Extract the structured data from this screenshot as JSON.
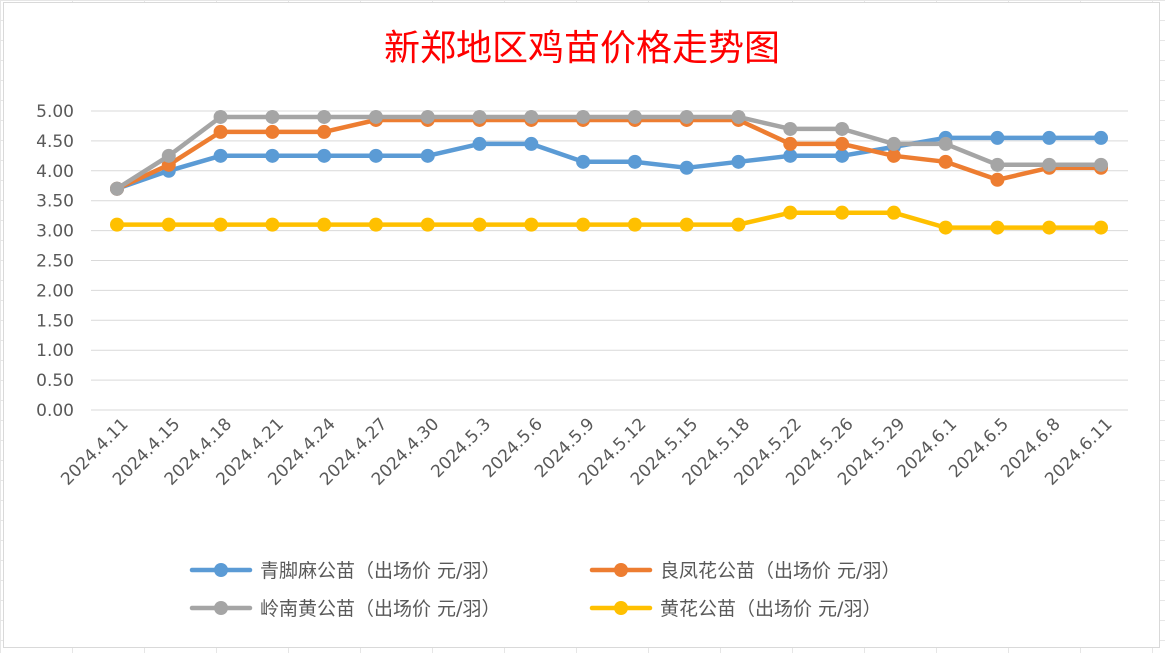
{
  "chart_data": {
    "type": "line",
    "title": "新郑地区鸡苗价格走势图",
    "xlabel": "",
    "ylabel": "",
    "ylim": [
      0,
      5
    ],
    "yticks": [
      "0.00",
      "0.50",
      "1.00",
      "1.50",
      "2.00",
      "2.50",
      "3.00",
      "3.50",
      "4.00",
      "4.50",
      "5.00"
    ],
    "grid": true,
    "legend_position": "bottom",
    "categories": [
      "2024.4.11",
      "2024.4.15",
      "2024.4.18",
      "2024.4.21",
      "2024.4.24",
      "2024.4.27",
      "2024.4.30",
      "2024.5.3",
      "2024.5.6",
      "2024.5.9",
      "2024.5.12",
      "2024.5.15",
      "2024.5.18",
      "2024.5.22",
      "2024.5.26",
      "2024.5.29",
      "2024.6.1",
      "2024.6.5",
      "2024.6.8",
      "2024.6.11"
    ],
    "series": [
      {
        "name": "青脚麻公苗（出场价 元/羽）",
        "color": "#5b9bd5",
        "values": [
          3.7,
          4.0,
          4.25,
          4.25,
          4.25,
          4.25,
          4.25,
          4.45,
          4.45,
          4.15,
          4.15,
          4.05,
          4.15,
          4.25,
          4.25,
          4.4,
          4.55,
          4.55,
          4.55,
          4.55
        ]
      },
      {
        "name": "良凤花公苗（出场价 元/羽）",
        "color": "#ed7d31",
        "values": [
          3.7,
          4.1,
          4.65,
          4.65,
          4.65,
          4.85,
          4.85,
          4.85,
          4.85,
          4.85,
          4.85,
          4.85,
          4.85,
          4.45,
          4.45,
          4.25,
          4.15,
          3.85,
          4.05,
          4.05
        ]
      },
      {
        "name": "岭南黄公苗（出场价 元/羽）",
        "color": "#a5a5a5",
        "values": [
          3.7,
          4.25,
          4.9,
          4.9,
          4.9,
          4.9,
          4.9,
          4.9,
          4.9,
          4.9,
          4.9,
          4.9,
          4.9,
          4.7,
          4.7,
          4.45,
          4.45,
          4.1,
          4.1,
          4.1
        ]
      },
      {
        "name": "黄花公苗（出场价 元/羽）",
        "color": "#ffc000",
        "values": [
          3.1,
          3.1,
          3.1,
          3.1,
          3.1,
          3.1,
          3.1,
          3.1,
          3.1,
          3.1,
          3.1,
          3.1,
          3.1,
          3.3,
          3.3,
          3.3,
          3.05,
          3.05,
          3.05,
          3.05
        ]
      }
    ]
  }
}
